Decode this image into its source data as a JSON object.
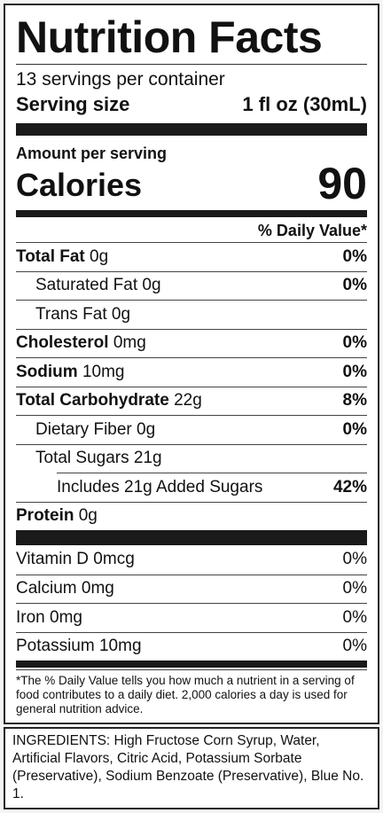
{
  "title": "Nutrition Facts",
  "servings_per_container": "13 servings per container",
  "serving_size_label": "Serving size",
  "serving_size_value": "1 fl oz (30mL)",
  "amount_per_serving": "Amount per serving",
  "calories_label": "Calories",
  "calories_value": "90",
  "daily_value_header": "% Daily Value*",
  "nutrients": [
    {
      "name": "Total Fat",
      "amount": "0g",
      "dv": "0%"
    },
    {
      "name": "Saturated Fat",
      "amount": "0g",
      "dv": "0%"
    },
    {
      "name": "Trans Fat",
      "amount": "0g",
      "dv": ""
    },
    {
      "name": "Cholesterol",
      "amount": "0mg",
      "dv": "0%"
    },
    {
      "name": "Sodium",
      "amount": "10mg",
      "dv": "0%"
    },
    {
      "name": "Total Carbohydrate",
      "amount": "22g",
      "dv": "8%"
    },
    {
      "name": "Dietary Fiber",
      "amount": "0g",
      "dv": "0%"
    },
    {
      "name": "Total Sugars",
      "amount": "21g",
      "dv": ""
    },
    {
      "name": "Includes 21g Added Sugars",
      "amount": "",
      "dv": "42%"
    },
    {
      "name": "Protein",
      "amount": "0g",
      "dv": ""
    }
  ],
  "vitamins": [
    {
      "name": "Vitamin D",
      "amount": "0mcg",
      "dv": "0%"
    },
    {
      "name": "Calcium",
      "amount": "0mg",
      "dv": "0%"
    },
    {
      "name": "Iron",
      "amount": "0mg",
      "dv": "0%"
    },
    {
      "name": "Potassium",
      "amount": "10mg",
      "dv": "0%"
    }
  ],
  "footnote": "*The % Daily Value tells you how much a nutrient in a serving of food contributes to a daily diet. 2,000 calories a day is used for general nutrition advice.",
  "ingredients": "INGREDIENTS: High Fructose Corn Syrup, Water, Artificial Flavors, Citric Acid, Potassium Sorbate (Preservative), Sodium Benzoate (Preservative), Blue No. 1."
}
